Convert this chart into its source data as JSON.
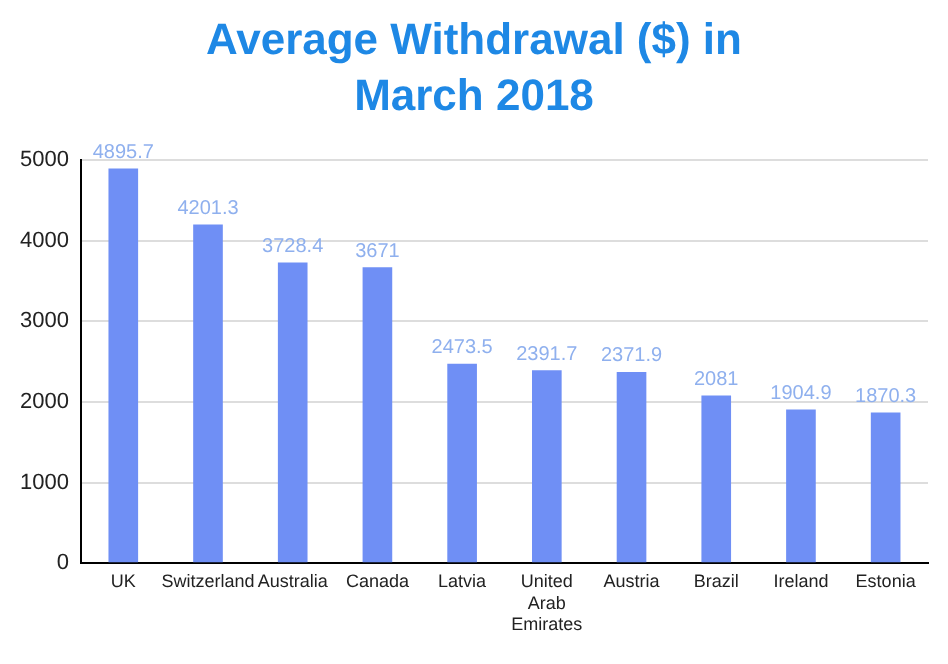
{
  "chart_data": {
    "type": "bar",
    "title": "Average Withdrawal ($) in March 2018",
    "categories": [
      "UK",
      "Switzerland",
      "Australia",
      "Canada",
      "Latvia",
      "United Arab Emirates",
      "Austria",
      "Brazil",
      "Ireland",
      "Estonia"
    ],
    "values": [
      4895.7,
      4201.3,
      3728.4,
      3671,
      2473.5,
      2391.7,
      2371.9,
      2081,
      1904.9,
      1870.3
    ],
    "color": "#6f8ff5",
    "ylim": [
      0,
      5000
    ],
    "yticks": [
      0,
      1000,
      2000,
      3000,
      4000,
      5000
    ],
    "grid": "y",
    "data_labels": true
  }
}
